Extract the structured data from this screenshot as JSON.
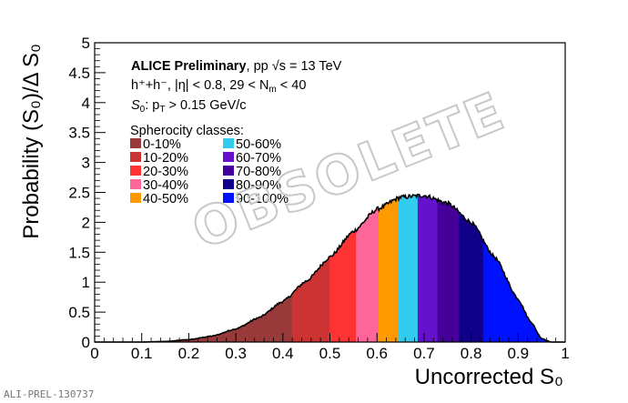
{
  "figure_id": "ALI-PREL-130737",
  "watermark": "OBSOLETE",
  "annotations": {
    "collab": "ALICE Preliminary",
    "system": ", pp √s = 13 TeV",
    "line2": "h⁺+h⁻, |η| < 0.8, 29 < N",
    "line2_sub": "m",
    "line2_tail": " < 40",
    "line3_s0": "S",
    "line3_s0_sub": "0",
    "line3_mid": ": p",
    "line3_pt_sub": "T",
    "line3_tail": " > 0.15 GeV/c"
  },
  "chart_data": {
    "type": "area",
    "title": "",
    "xlabel": "Uncorrected S₀",
    "ylabel": "Probability (S₀)/Δ S₀",
    "xlim": [
      0,
      1
    ],
    "ylim": [
      0,
      5
    ],
    "x_ticks": [
      "0",
      "0.1",
      "0.2",
      "0.3",
      "0.4",
      "0.5",
      "0.6",
      "0.7",
      "0.8",
      "0.9",
      "1"
    ],
    "y_ticks": [
      "0",
      "0.5",
      "1",
      "1.5",
      "2",
      "2.5",
      "3",
      "3.5",
      "4",
      "4.5",
      "5"
    ],
    "legend_title": "Spherocity classes:",
    "classes": [
      {
        "label": "0-10%",
        "color": "#993a3a",
        "x_range": [
          0.0,
          0.42
        ]
      },
      {
        "label": "10-20%",
        "color": "#cc3333",
        "x_range": [
          0.42,
          0.5
        ]
      },
      {
        "label": "20-30%",
        "color": "#ff3333",
        "x_range": [
          0.5,
          0.556
        ]
      },
      {
        "label": "30-40%",
        "color": "#ff6699",
        "x_range": [
          0.556,
          0.604
        ]
      },
      {
        "label": "40-50%",
        "color": "#ff9900",
        "x_range": [
          0.604,
          0.646
        ]
      },
      {
        "label": "50-60%",
        "color": "#33ccee",
        "x_range": [
          0.646,
          0.687
        ]
      },
      {
        "label": "60-70%",
        "color": "#6611cc",
        "x_range": [
          0.687,
          0.729
        ]
      },
      {
        "label": "70-80%",
        "color": "#440099",
        "x_range": [
          0.729,
          0.775
        ]
      },
      {
        "label": "80-90%",
        "color": "#110088",
        "x_range": [
          0.775,
          0.826
        ]
      },
      {
        "label": "90-100%",
        "color": "#0011ff",
        "x_range": [
          0.826,
          1.0
        ]
      }
    ],
    "distribution": {
      "x": [
        0.1,
        0.15,
        0.2,
        0.25,
        0.3,
        0.35,
        0.4,
        0.45,
        0.5,
        0.55,
        0.6,
        0.65,
        0.7,
        0.75,
        0.8,
        0.85,
        0.9,
        0.925,
        0.95,
        0.97,
        1.0
      ],
      "y": [
        0.0,
        0.01,
        0.04,
        0.1,
        0.22,
        0.41,
        0.68,
        1.02,
        1.42,
        1.85,
        2.22,
        2.42,
        2.45,
        2.32,
        2.0,
        1.42,
        0.72,
        0.36,
        0.06,
        0.0,
        0.0
      ]
    }
  }
}
